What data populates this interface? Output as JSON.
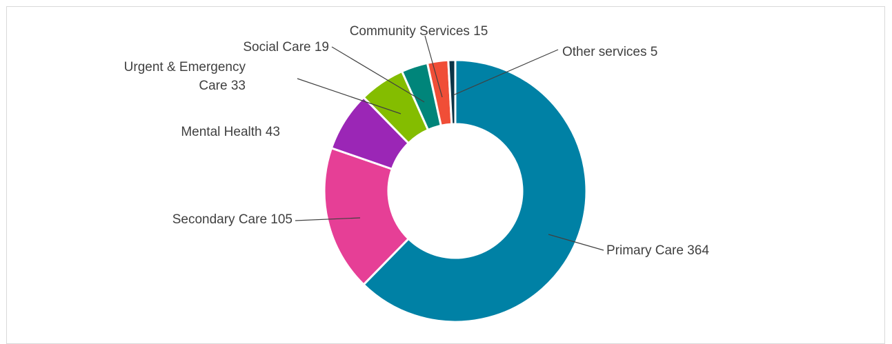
{
  "chart_data": {
    "type": "pie",
    "variant": "doughnut",
    "slices": [
      {
        "label": "Primary Care",
        "value": 364,
        "color": "#0081A5",
        "label_lines": [
          "Primary Care 364"
        ]
      },
      {
        "label": "Secondary Care",
        "value": 105,
        "color": "#E63F96",
        "label_lines": [
          "Secondary Care 105"
        ]
      },
      {
        "label": "Mental Health",
        "value": 43,
        "color": "#9B26B6",
        "label_lines": [
          "Mental Health 43"
        ]
      },
      {
        "label": "Urgent & Emergency Care",
        "value": 33,
        "color": "#84BD00",
        "label_lines": [
          "Urgent & Emergency",
          "Care 33"
        ]
      },
      {
        "label": "Social Care",
        "value": 19,
        "color": "#00857A",
        "label_lines": [
          "Social Care 19"
        ]
      },
      {
        "label": "Community Services",
        "value": 15,
        "color": "#F04E37",
        "label_lines": [
          "Community Services 15"
        ]
      },
      {
        "label": "Other services",
        "value": 5,
        "color": "#0B3446",
        "label_lines": [
          "Other services 5"
        ]
      }
    ],
    "legend": "none",
    "data_labels": "outside with leader lines"
  }
}
